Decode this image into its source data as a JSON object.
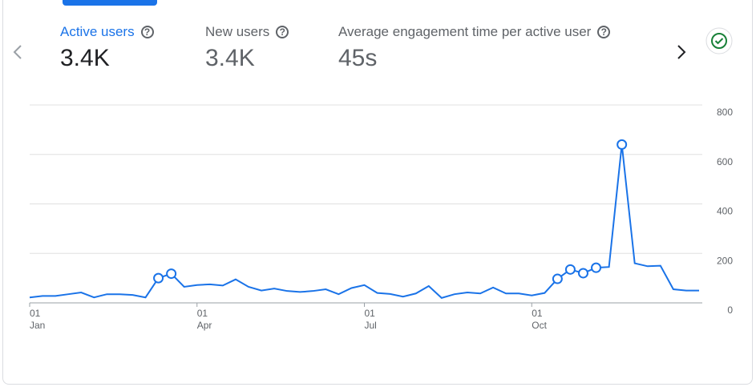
{
  "tabs": [
    {
      "label": "Active users",
      "value": "3.4K"
    },
    {
      "label": "New users",
      "value": "3.4K"
    },
    {
      "label": "Average engagement time per active user",
      "value": "45s"
    }
  ],
  "chart_data": {
    "type": "line",
    "categories": [
      "01\nJan",
      null,
      null,
      null,
      null,
      null,
      null,
      null,
      null,
      null,
      null,
      null,
      null,
      "01\nApr",
      null,
      null,
      null,
      null,
      null,
      null,
      null,
      null,
      null,
      null,
      null,
      null,
      "01\nJul",
      null,
      null,
      null,
      null,
      null,
      null,
      null,
      null,
      null,
      null,
      null,
      null,
      "01\nOct",
      null,
      null,
      null,
      null,
      null,
      null,
      null,
      null,
      null,
      null,
      null,
      null,
      null
    ],
    "series": [
      {
        "name": "Active users",
        "color": "#1a73e8",
        "values": [
          22,
          28,
          28,
          35,
          42,
          22,
          35,
          35,
          32,
          22,
          100,
          118,
          65,
          72,
          75,
          70,
          95,
          65,
          50,
          58,
          48,
          44,
          48,
          55,
          35,
          60,
          72,
          40,
          36,
          25,
          38,
          68,
          20,
          35,
          42,
          38,
          62,
          38,
          38,
          30,
          40,
          97,
          135,
          120,
          142,
          145,
          640,
          160,
          148,
          150,
          55,
          50,
          50
        ],
        "anomalies": [
          10,
          11,
          41,
          42,
          43,
          44,
          46
        ]
      }
    ],
    "ylim": [
      0,
      800
    ],
    "yticks": [
      0,
      200,
      400,
      600,
      800
    ],
    "grid": true
  }
}
